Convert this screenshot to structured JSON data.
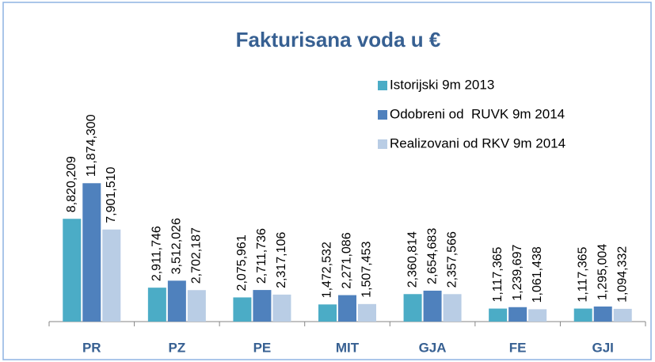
{
  "chart_data": {
    "type": "bar",
    "title": "Fakturisana voda u €",
    "categories": [
      "PR",
      "PZ",
      "PE",
      "MIT",
      "GJA",
      "FE",
      "GJI"
    ],
    "series": [
      {
        "name": "Istorijski 9m 2013",
        "color": "#4bacc6",
        "values": [
          8820209,
          2911746,
          2075961,
          1472532,
          2360814,
          1117365,
          1117365
        ],
        "value_labels": [
          "8,820,209",
          "2,911,746",
          "2,075,961",
          "1,472,532",
          "2,360,814",
          "1,117,365",
          "1,117,365"
        ]
      },
      {
        "name": "Odobreni od  RUVK 9m 2014",
        "color": "#4f81bd",
        "values": [
          11874300,
          3512026,
          2711736,
          2271086,
          2654683,
          1239697,
          1295004
        ],
        "value_labels": [
          "11,874,300",
          "3,512,026",
          "2,711,736",
          "2,271,086",
          "2,654,683",
          "1,239,697",
          "1,295,004"
        ]
      },
      {
        "name": "Realizovani od RKV 9m 2014",
        "color": "#b9cde5",
        "values": [
          7901510,
          2702187,
          2317106,
          1507453,
          2357566,
          1061438,
          1094332
        ],
        "value_labels": [
          "7,901,510",
          "2,702,187",
          "2,317,106",
          "1,507,453",
          "2,357,566",
          "1,061,438",
          "1,094,332"
        ]
      }
    ],
    "ylim": [
      0,
      14000000
    ],
    "legend": "top-right"
  }
}
